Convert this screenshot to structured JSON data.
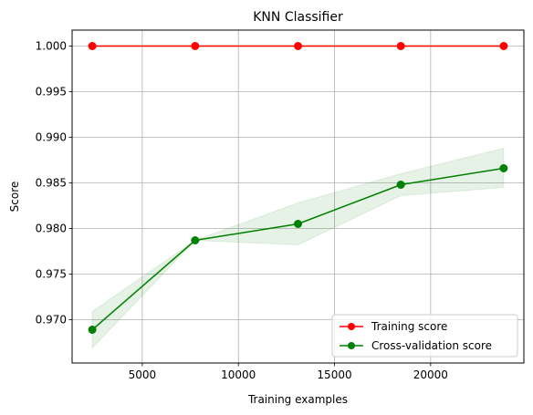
{
  "chart_data": {
    "type": "line",
    "title": "KNN Classifier",
    "xlabel": "Training examples",
    "ylabel": "Score",
    "xlim": [
      1350,
      24850
    ],
    "ylim": [
      0.96525,
      1.00175
    ],
    "grid": true,
    "legend_position": "bottom-right",
    "x_ticks": [
      5000,
      10000,
      15000,
      20000
    ],
    "x_tick_labels": [
      "5000",
      "10000",
      "15000",
      "20000"
    ],
    "y_ticks": [
      0.97,
      0.975,
      0.98,
      0.985,
      0.99,
      0.995,
      1.0
    ],
    "y_tick_labels": [
      "0.970",
      "0.975",
      "0.980",
      "0.985",
      "0.990",
      "0.995",
      "1.000"
    ],
    "x": [
      2400,
      7750,
      13100,
      18450,
      23800
    ],
    "series": [
      {
        "name": "Training score",
        "color": "#ff0000",
        "values": [
          1.0,
          1.0,
          1.0,
          1.0,
          1.0
        ],
        "band_lower": [
          1.0,
          1.0,
          1.0,
          1.0,
          1.0
        ],
        "band_upper": [
          1.0,
          1.0,
          1.0,
          1.0,
          1.0
        ]
      },
      {
        "name": "Cross-validation score",
        "color": "#008000",
        "values": [
          0.9689,
          0.9787,
          0.9805,
          0.9848,
          0.9866
        ],
        "band_lower": [
          0.9669,
          0.9787,
          0.9782,
          0.9836,
          0.9845
        ],
        "band_upper": [
          0.9709,
          0.9787,
          0.9828,
          0.986,
          0.9888
        ]
      }
    ]
  }
}
